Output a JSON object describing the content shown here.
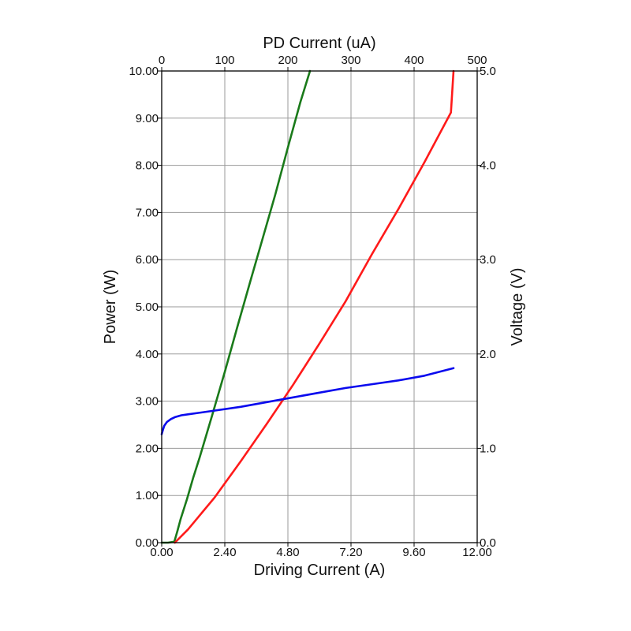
{
  "chart_data": {
    "type": "line",
    "title": "",
    "xlabel": "Driving Current (A)",
    "x2label": "PD Current (uA)",
    "ylabel": "Power (W)",
    "y2label": "Voltage (V)",
    "xlim": [
      0,
      12
    ],
    "x2lim": [
      0,
      500
    ],
    "ylim": [
      0,
      10
    ],
    "y2lim": [
      0,
      5
    ],
    "grid": true,
    "x_ticks": [
      "0.00",
      "2.40",
      "4.80",
      "7.20",
      "9.60",
      "12.00"
    ],
    "x2_ticks": [
      "0",
      "100",
      "200",
      "300",
      "400",
      "500"
    ],
    "y_ticks": [
      "0.00",
      "1.00",
      "2.00",
      "3.00",
      "4.00",
      "5.00",
      "6.00",
      "7.00",
      "8.00",
      "9.00",
      "10.00"
    ],
    "y2_ticks": [
      "0.0",
      "1.0",
      "2.0",
      "3.0",
      "4.0",
      "5.0"
    ],
    "series": [
      {
        "key": "green",
        "axis": "x2-y",
        "color": "#1a7a1a",
        "x": [
          0,
          10,
          20,
          25,
          30,
          40,
          50,
          60,
          80,
          100,
          120,
          140,
          160,
          180,
          200,
          220,
          235
        ],
        "y": [
          0.0,
          0.0,
          0.02,
          0.25,
          0.5,
          0.92,
          1.38,
          1.8,
          2.7,
          3.62,
          4.58,
          5.52,
          6.45,
          7.38,
          8.38,
          9.35,
          10.0
        ]
      },
      {
        "key": "red",
        "axis": "x-y",
        "color": "#ff1a1a",
        "x": [
          0.5,
          1.0,
          2.0,
          3.0,
          4.0,
          5.0,
          6.0,
          7.0,
          8.0,
          9.0,
          10.0,
          11.0,
          11.1
        ],
        "y": [
          0.0,
          0.28,
          0.95,
          1.72,
          2.52,
          3.35,
          4.22,
          5.12,
          6.12,
          7.07,
          8.07,
          9.12,
          10.0
        ]
      },
      {
        "key": "blue",
        "axis": "x-y2",
        "color": "#0a0aee",
        "x": [
          0.0,
          0.05,
          0.1,
          0.2,
          0.35,
          0.5,
          0.75,
          1.0,
          1.5,
          2.0,
          3.0,
          4.0,
          5.0,
          6.0,
          7.0,
          8.0,
          9.0,
          10.0,
          11.1
        ],
        "y": [
          1.15,
          1.2,
          1.24,
          1.28,
          1.31,
          1.33,
          1.35,
          1.36,
          1.38,
          1.4,
          1.44,
          1.49,
          1.54,
          1.59,
          1.64,
          1.68,
          1.72,
          1.77,
          1.85
        ]
      }
    ]
  }
}
